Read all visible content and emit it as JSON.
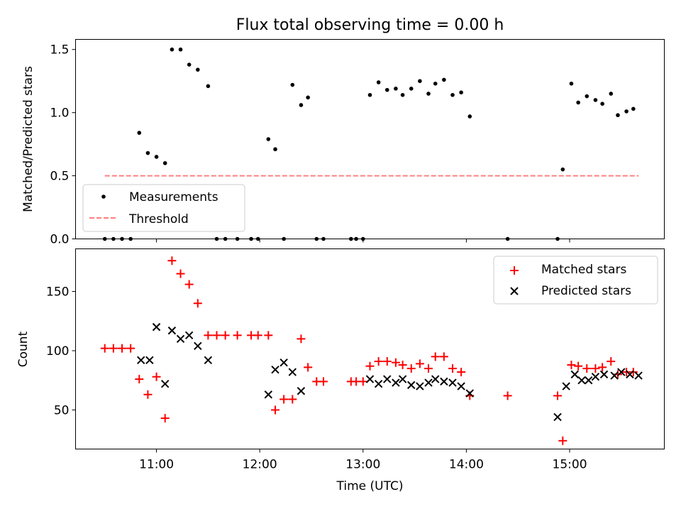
{
  "chart_data": [
    {
      "type": "scatter",
      "title": "Flux total observing time = 0.00 h",
      "xlabel": "",
      "ylabel": "Matched/Predicted stars",
      "xlim": [
        "10:13",
        "15:55"
      ],
      "ylim": [
        0,
        1.58
      ],
      "y_ticks": [
        "0.0",
        "0.5",
        "1.0",
        "1.5"
      ],
      "x_ticks": [
        "11:00",
        "12:00",
        "13:00",
        "14:00",
        "15:00"
      ],
      "x_tick_labels_shown": false,
      "legend": {
        "placement": "lower-left",
        "entries": [
          "Measurements",
          "Threshold"
        ]
      },
      "colors": {
        "measurements": "#000000",
        "threshold": "#ff7f7f"
      },
      "threshold": {
        "value": 0.5,
        "x_start": "10:30",
        "x_end": "15:40"
      },
      "series": [
        {
          "name": "Measurements",
          "x": [
            "10:30",
            "10:35",
            "10:40",
            "10:45",
            "10:50",
            "10:55",
            "11:00",
            "11:05",
            "11:09",
            "11:14",
            "11:19",
            "11:24",
            "11:30",
            "11:35",
            "11:40",
            "11:47",
            "11:55",
            "11:59",
            "12:05",
            "12:09",
            "12:14",
            "12:19",
            "12:24",
            "12:28",
            "12:33",
            "12:37",
            "12:53",
            "12:56",
            "13:00",
            "13:04",
            "13:09",
            "13:14",
            "13:19",
            "13:23",
            "13:28",
            "13:33",
            "13:38",
            "13:42",
            "13:47",
            "13:52",
            "13:57",
            "14:02",
            "14:24",
            "14:53",
            "14:56",
            "15:01",
            "15:05",
            "15:10",
            "15:15",
            "15:19",
            "15:24",
            "15:28",
            "15:33",
            "15:37"
          ],
          "y": [
            0,
            0,
            0,
            0,
            0.84,
            0.68,
            0.65,
            0.6,
            1.5,
            1.5,
            1.38,
            1.34,
            1.21,
            0,
            0,
            0,
            0,
            0,
            0.79,
            0.71,
            0,
            1.22,
            1.06,
            1.12,
            0,
            0,
            0,
            0,
            0,
            1.14,
            1.24,
            1.18,
            1.19,
            1.14,
            1.19,
            1.25,
            1.15,
            1.23,
            1.26,
            1.14,
            1.16,
            0.97,
            0,
            0,
            0.55,
            1.23,
            1.08,
            1.13,
            1.1,
            1.07,
            1.15,
            0.98,
            1.01,
            1.03
          ]
        }
      ]
    },
    {
      "type": "scatter",
      "title": "",
      "xlabel": "Time (UTC)",
      "ylabel": "Count",
      "xlim": [
        "10:13",
        "15:55"
      ],
      "ylim": [
        17,
        186
      ],
      "y_ticks": [
        "50",
        "100",
        "150"
      ],
      "x_ticks": [
        "11:00",
        "12:00",
        "13:00",
        "14:00",
        "15:00"
      ],
      "legend": {
        "placement": "upper-right",
        "entries": [
          "Matched stars",
          "Predicted stars"
        ]
      },
      "colors": {
        "matched": "#ff0000",
        "predicted": "#000000"
      },
      "series": [
        {
          "name": "Matched stars",
          "x": [
            "10:30",
            "10:35",
            "10:40",
            "10:45",
            "10:50",
            "10:55",
            "11:00",
            "11:05",
            "11:09",
            "11:14",
            "11:19",
            "11:24",
            "11:30",
            "11:35",
            "11:40",
            "11:47",
            "11:55",
            "11:59",
            "12:05",
            "12:09",
            "12:14",
            "12:19",
            "12:24",
            "12:28",
            "12:33",
            "12:37",
            "12:53",
            "12:56",
            "13:00",
            "13:04",
            "13:09",
            "13:14",
            "13:19",
            "13:23",
            "13:28",
            "13:33",
            "13:38",
            "13:42",
            "13:47",
            "13:52",
            "13:57",
            "14:02",
            "14:24",
            "14:53",
            "14:56",
            "15:01",
            "15:05",
            "15:10",
            "15:15",
            "15:19",
            "15:24",
            "15:28",
            "15:33",
            "15:37"
          ],
          "y": [
            102,
            102,
            102,
            102,
            76,
            63,
            78,
            43,
            176,
            165,
            156,
            140,
            113,
            113,
            113,
            113,
            113,
            113,
            113,
            50,
            59,
            59,
            110,
            86,
            74,
            74,
            74,
            74,
            74,
            87,
            91,
            91,
            90,
            88,
            85,
            89,
            85,
            95,
            95,
            85,
            82,
            62,
            62,
            62,
            24,
            88,
            87,
            85,
            85,
            86,
            91,
            80,
            82,
            82
          ]
        },
        {
          "name": "Predicted stars",
          "x": [
            "10:51",
            "10:56",
            "11:00",
            "11:05",
            "11:09",
            "11:14",
            "11:19",
            "11:24",
            "11:30",
            "12:05",
            "12:09",
            "12:14",
            "12:19",
            "12:24",
            "13:04",
            "13:09",
            "13:14",
            "13:19",
            "13:23",
            "13:28",
            "13:33",
            "13:38",
            "13:42",
            "13:47",
            "13:52",
            "13:57",
            "14:02",
            "14:53",
            "14:58",
            "15:03",
            "15:07",
            "15:11",
            "15:15",
            "15:20",
            "15:26",
            "15:30",
            "15:35",
            "15:40"
          ],
          "y": [
            92,
            92,
            120,
            72,
            117,
            110,
            113,
            104,
            92,
            63,
            84,
            90,
            82,
            66,
            76,
            72,
            76,
            73,
            76,
            71,
            70,
            73,
            76,
            74,
            73,
            70,
            64,
            44,
            70,
            80,
            75,
            75,
            78,
            80,
            79,
            82,
            80,
            79
          ]
        }
      ]
    }
  ]
}
